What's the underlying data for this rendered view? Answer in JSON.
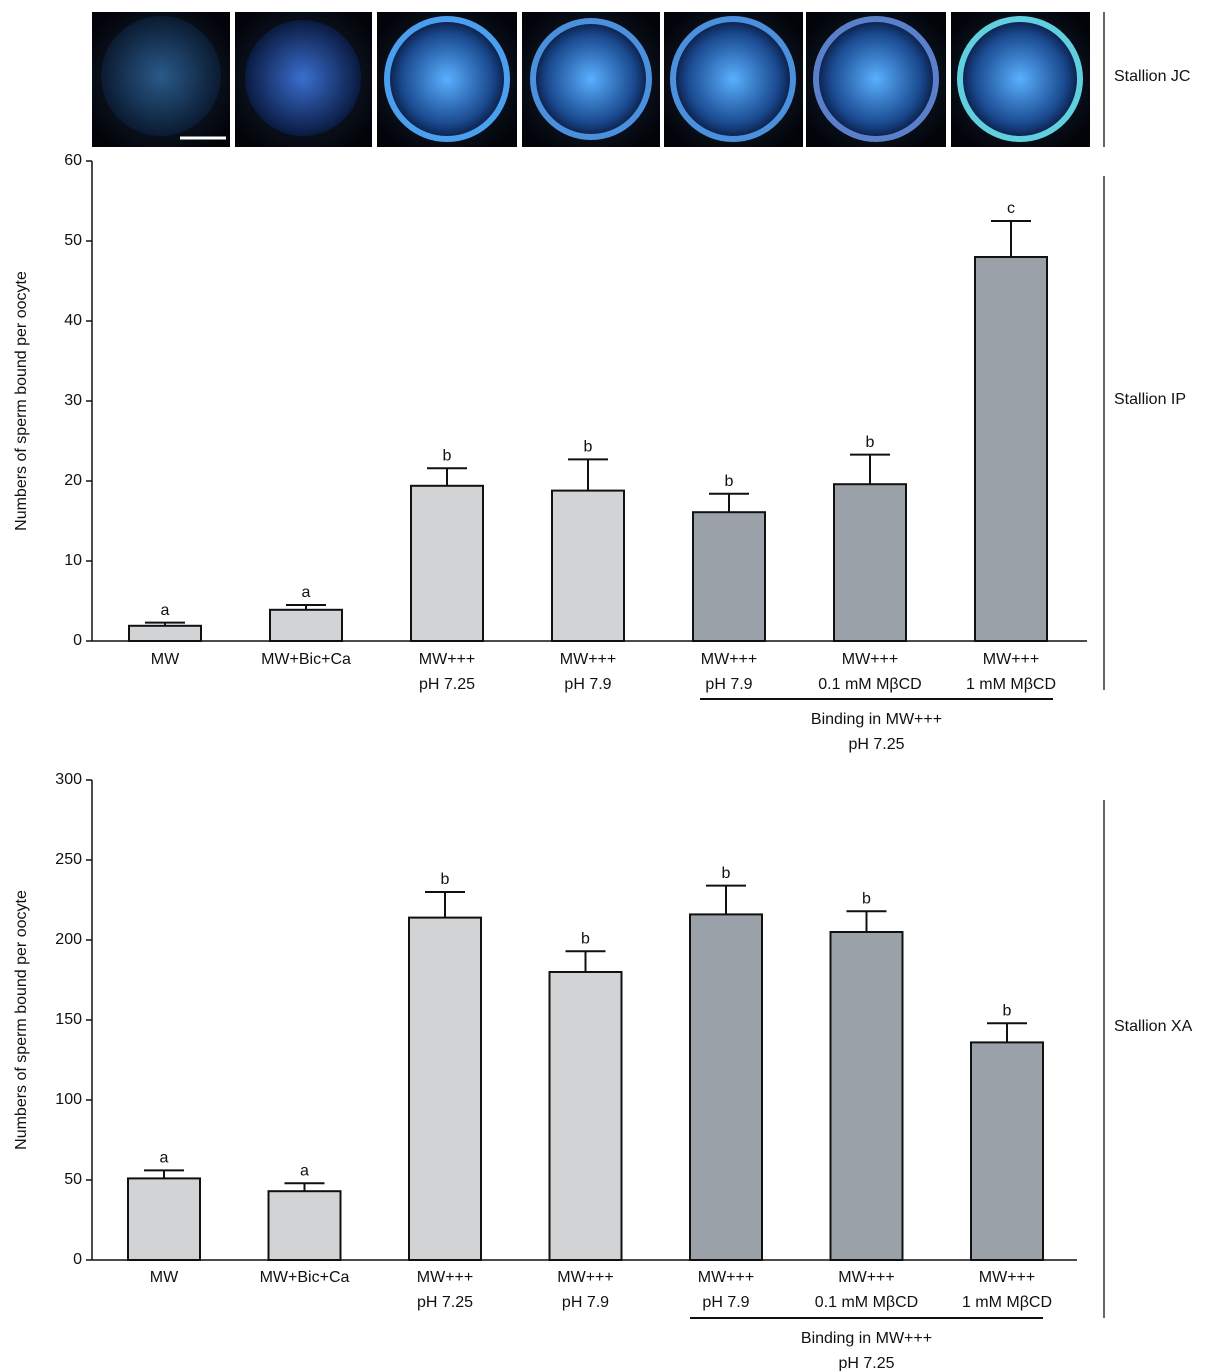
{
  "image_strip": {
    "label": "Stallion JC"
  },
  "chart_data": [
    {
      "type": "bar",
      "side_label": "Stallion IP",
      "y_label": "Numbers of sperm bound per oocyte",
      "categories": [
        "MW",
        "MW+Bic+Ca",
        "MW+++\npH 7.25",
        "MW+++\npH 7.9",
        "MW+++\npH 7.9",
        "MW+++\n0.1 mM MβCD",
        "MW+++\n1 mM MβCD"
      ],
      "values": [
        1.9,
        3.9,
        19.4,
        18.8,
        16.1,
        19.6,
        48
      ],
      "errors": [
        0.4,
        0.6,
        2.2,
        3.9,
        2.3,
        3.7,
        4.5
      ],
      "annotations": [
        "a",
        "a",
        "b",
        "b",
        "b",
        "b",
        "c"
      ],
      "colors": [
        "#d1d3d5",
        "#d1d3d5",
        "#d1d3d5",
        "#d1d3d5",
        "#9ba1a9",
        "#9ba1a9",
        "#9ba1a9"
      ],
      "group_label": "Binding in MW+++\npH 7.25",
      "ylim": [
        0,
        60
      ],
      "yticks": [
        0,
        10,
        20,
        30,
        40,
        50,
        60
      ]
    },
    {
      "type": "bar",
      "side_label": "Stallion XA",
      "y_label": "Numbers of sperm bound per oocyte",
      "categories": [
        "MW",
        "MW+Bic+Ca",
        "MW+++\npH 7.25",
        "MW+++\npH 7.9",
        "MW+++\npH 7.9",
        "MW+++\n0.1 mM MβCD",
        "MW+++\n1 mM MβCD"
      ],
      "values": [
        51,
        43,
        214,
        180,
        216,
        205,
        136
      ],
      "errors": [
        5,
        5,
        16,
        13,
        18,
        13,
        12
      ],
      "annotations": [
        "a",
        "a",
        "b",
        "b",
        "b",
        "b",
        "b"
      ],
      "colors": [
        "#d1d3d5",
        "#d1d3d5",
        "#d1d3d5",
        "#d1d3d5",
        "#9ba1a9",
        "#9ba1a9",
        "#9ba1a9"
      ],
      "group_label": "Binding in MW+++\npH 7.25",
      "ylim": [
        0,
        300
      ],
      "yticks": [
        0,
        50,
        100,
        150,
        200,
        250,
        300
      ]
    }
  ]
}
